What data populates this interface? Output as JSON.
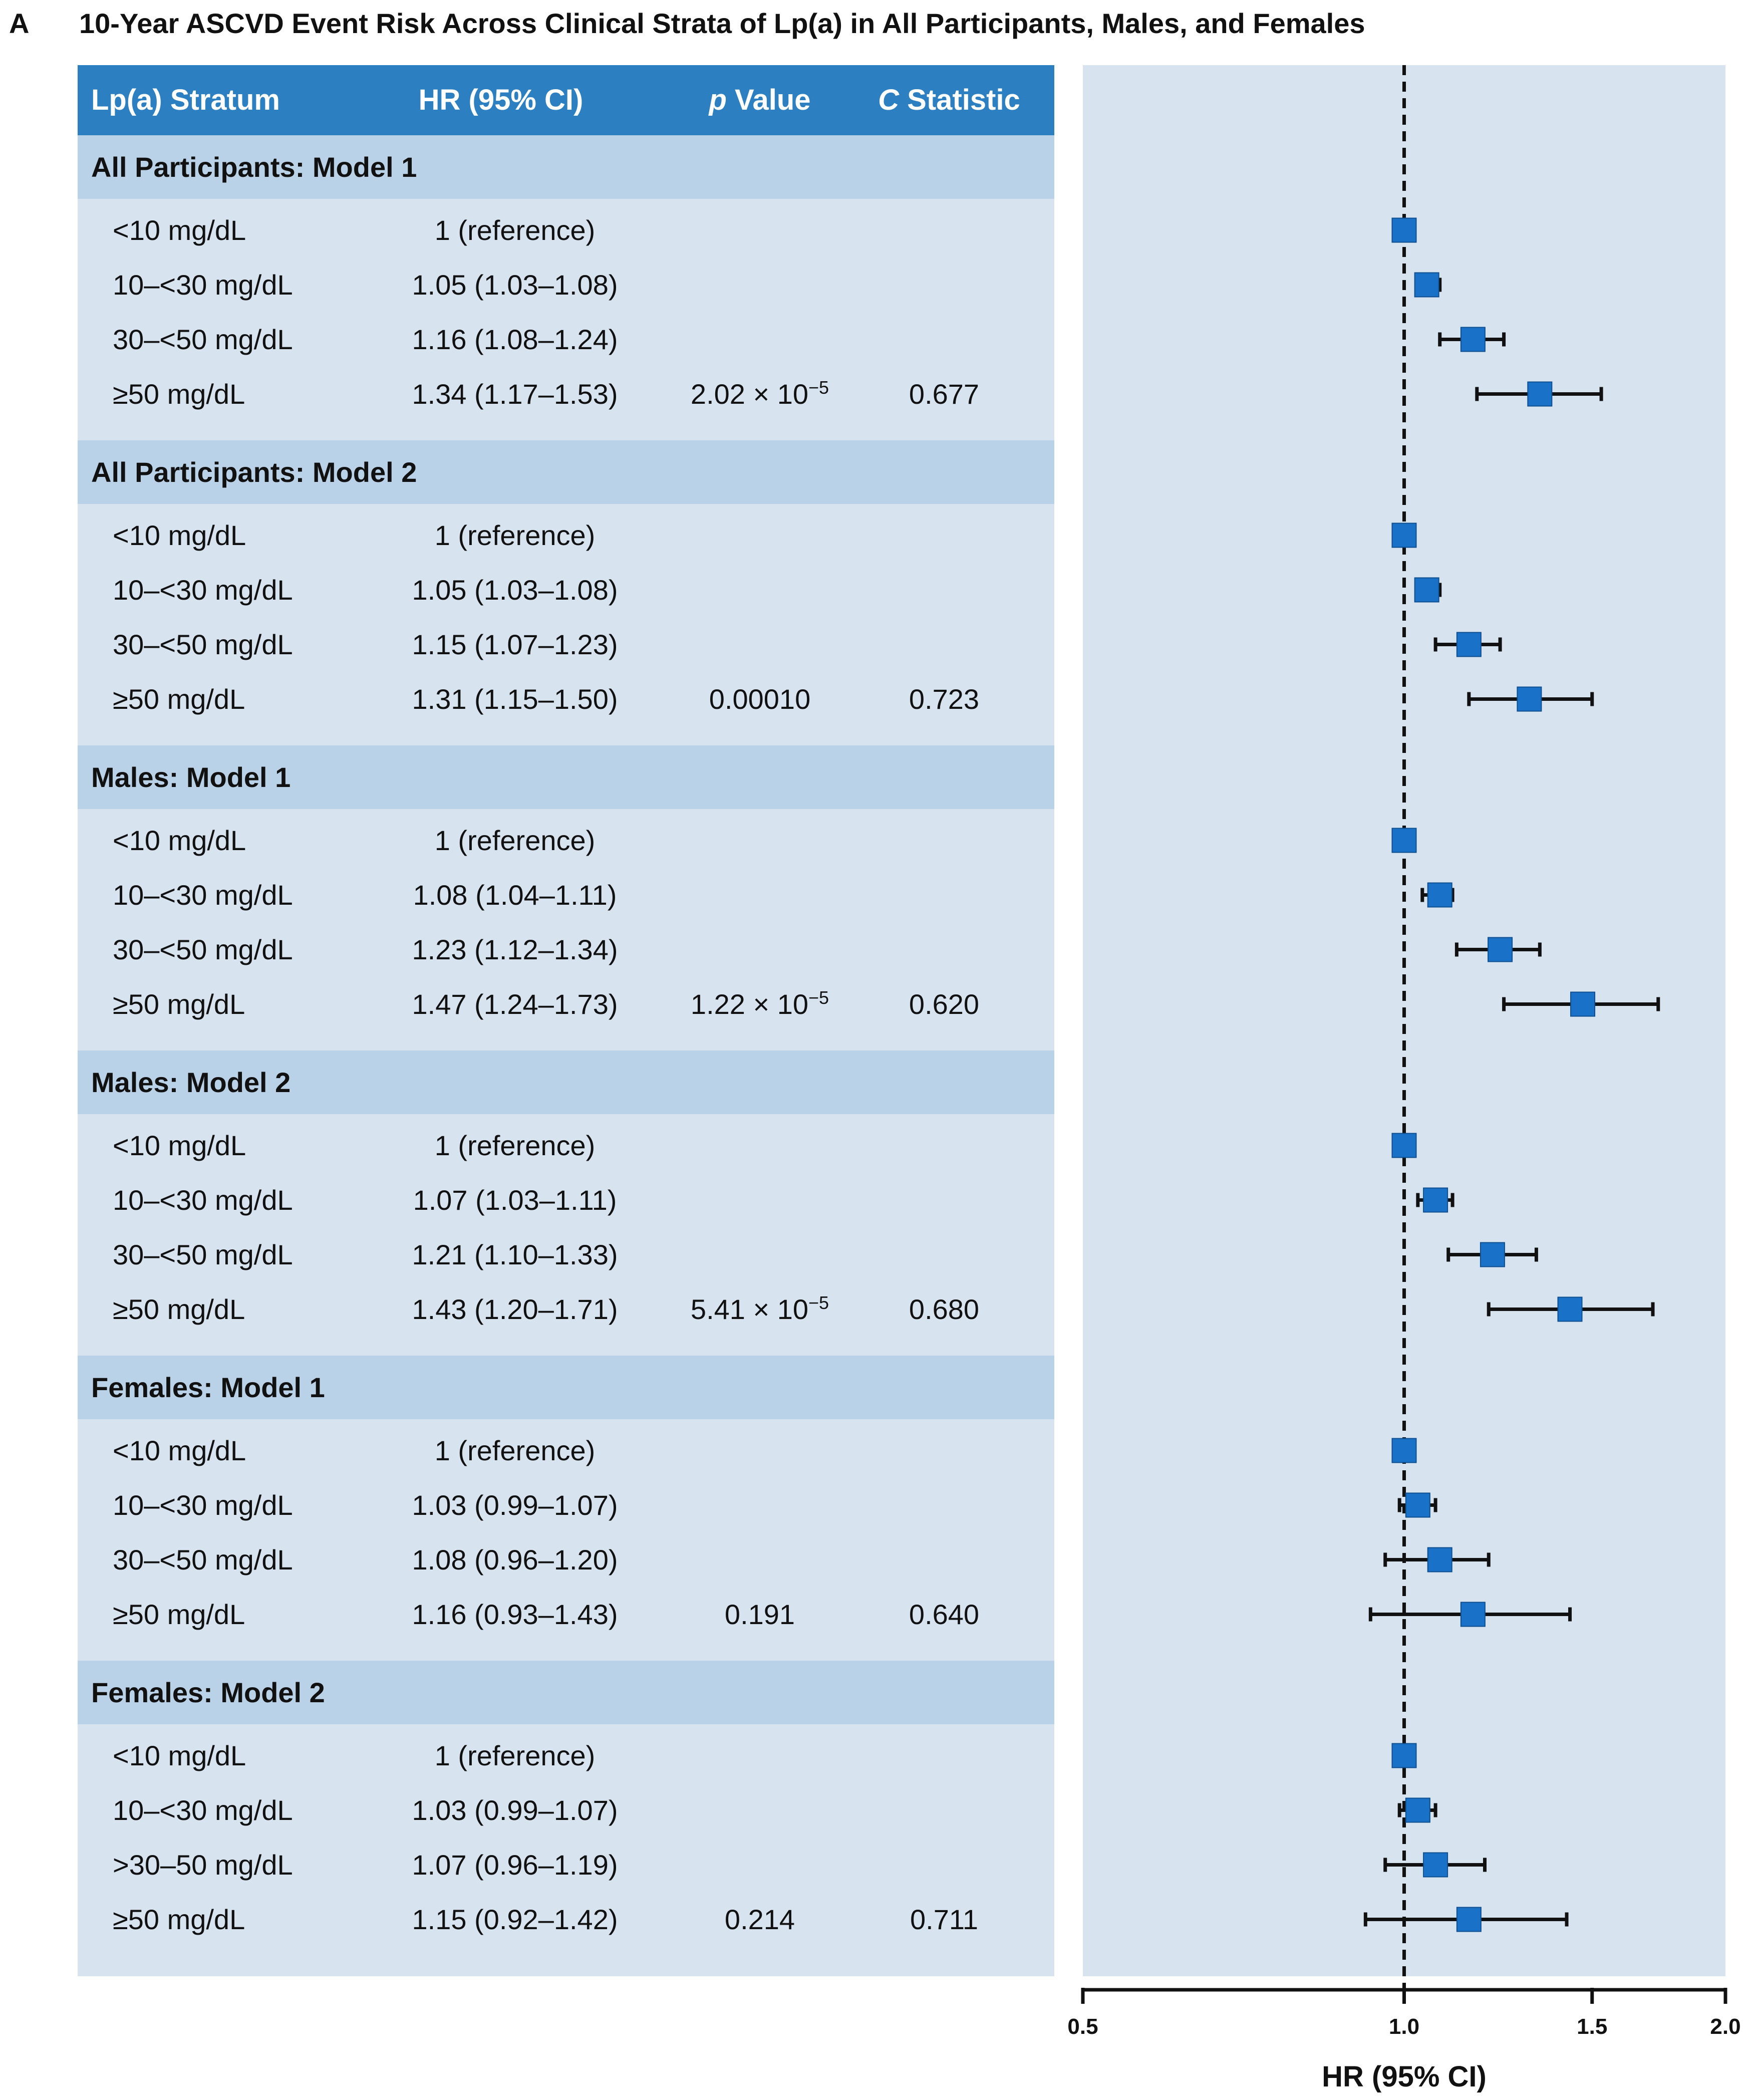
{
  "figure": {
    "panel_letter": "A",
    "title": "10-Year ASCVD Event Risk Across Clinical Strata of Lp(a) in All Participants, Males, and Females"
  },
  "table": {
    "headers": {
      "stratum": "Lp(a) Stratum",
      "hr": "HR (95% CI)",
      "p_italic": "p",
      "p_rest": " Value",
      "c_italic": "C",
      "c_rest": " Statistic"
    },
    "sections": [
      {
        "label": "All Participants: Model 1",
        "p_value": "2.02 × 10",
        "p_exp": "−5",
        "c_statistic": "0.677",
        "rows": [
          {
            "stratum": "<10 mg/dL",
            "hr_ci": "1 (reference)"
          },
          {
            "stratum": "10–<30 mg/dL",
            "hr_ci": "1.05 (1.03–1.08)"
          },
          {
            "stratum": "30–<50 mg/dL",
            "hr_ci": "1.16 (1.08–1.24)"
          },
          {
            "stratum": "≥50 mg/dL",
            "hr_ci": "1.34 (1.17–1.53)"
          }
        ]
      },
      {
        "label": "All Participants: Model 2",
        "p_value": "0.00010",
        "p_exp": "",
        "c_statistic": "0.723",
        "rows": [
          {
            "stratum": "<10 mg/dL",
            "hr_ci": "1 (reference)"
          },
          {
            "stratum": "10–<30 mg/dL",
            "hr_ci": "1.05 (1.03–1.08)"
          },
          {
            "stratum": "30–<50 mg/dL",
            "hr_ci": "1.15 (1.07–1.23)"
          },
          {
            "stratum": "≥50 mg/dL",
            "hr_ci": "1.31 (1.15–1.50)"
          }
        ]
      },
      {
        "label": "Males: Model 1",
        "p_value": "1.22 × 10",
        "p_exp": "−5",
        "c_statistic": "0.620",
        "rows": [
          {
            "stratum": "<10 mg/dL",
            "hr_ci": "1 (reference)"
          },
          {
            "stratum": "10–<30 mg/dL",
            "hr_ci": "1.08 (1.04–1.11)"
          },
          {
            "stratum": "30–<50 mg/dL",
            "hr_ci": "1.23 (1.12–1.34)"
          },
          {
            "stratum": "≥50 mg/dL",
            "hr_ci": "1.47 (1.24–1.73)"
          }
        ]
      },
      {
        "label": "Males: Model 2",
        "p_value": "5.41 × 10",
        "p_exp": "−5",
        "c_statistic": "0.680",
        "rows": [
          {
            "stratum": "<10 mg/dL",
            "hr_ci": "1 (reference)"
          },
          {
            "stratum": "10–<30 mg/dL",
            "hr_ci": "1.07 (1.03–1.11)"
          },
          {
            "stratum": "30–<50 mg/dL",
            "hr_ci": "1.21 (1.10–1.33)"
          },
          {
            "stratum": "≥50 mg/dL",
            "hr_ci": "1.43 (1.20–1.71)"
          }
        ]
      },
      {
        "label": "Females: Model 1",
        "p_value": "0.191",
        "p_exp": "",
        "c_statistic": "0.640",
        "rows": [
          {
            "stratum": "<10 mg/dL",
            "hr_ci": "1 (reference)"
          },
          {
            "stratum": "10–<30 mg/dL",
            "hr_ci": "1.03 (0.99–1.07)"
          },
          {
            "stratum": "30–<50 mg/dL",
            "hr_ci": "1.08 (0.96–1.20)"
          },
          {
            "stratum": "≥50 mg/dL",
            "hr_ci": "1.16 (0.93–1.43)"
          }
        ]
      },
      {
        "label": "Females: Model 2",
        "p_value": "0.214",
        "p_exp": "",
        "c_statistic": "0.711",
        "rows": [
          {
            "stratum": "<10 mg/dL",
            "hr_ci": "1 (reference)"
          },
          {
            "stratum": "10–<30 mg/dL",
            "hr_ci": "1.03 (0.99–1.07)"
          },
          {
            "stratum": ">30–50 mg/dL",
            "hr_ci": "1.07 (0.96–1.19)"
          },
          {
            "stratum": "≥50 mg/dL",
            "hr_ci": "1.15 (0.92–1.42)"
          }
        ]
      }
    ]
  },
  "chart_data": {
    "type": "forest",
    "xscale": "log",
    "xlim": [
      0.5,
      2.0
    ],
    "xticks": [
      0.5,
      1.0,
      1.5,
      2.0
    ],
    "xtick_labels": [
      "0.5",
      "1.0",
      "1.5",
      "2.0"
    ],
    "xlabel": "HR (95% CI)",
    "reference_line": 1.0,
    "colors": {
      "marker": "#1a72c8",
      "panel_bg": "#d7e4f0",
      "line": "#111111"
    },
    "groups": [
      {
        "name": "All Participants: Model 1",
        "points": [
          {
            "label": "<10 mg/dL",
            "hr": 1.0,
            "lo": 1.0,
            "hi": 1.0
          },
          {
            "label": "10–<30 mg/dL",
            "hr": 1.05,
            "lo": 1.03,
            "hi": 1.08
          },
          {
            "label": "30–<50 mg/dL",
            "hr": 1.16,
            "lo": 1.08,
            "hi": 1.24
          },
          {
            "label": "≥50 mg/dL",
            "hr": 1.34,
            "lo": 1.17,
            "hi": 1.53
          }
        ]
      },
      {
        "name": "All Participants: Model 2",
        "points": [
          {
            "label": "<10 mg/dL",
            "hr": 1.0,
            "lo": 1.0,
            "hi": 1.0
          },
          {
            "label": "10–<30 mg/dL",
            "hr": 1.05,
            "lo": 1.03,
            "hi": 1.08
          },
          {
            "label": "30–<50 mg/dL",
            "hr": 1.15,
            "lo": 1.07,
            "hi": 1.23
          },
          {
            "label": "≥50 mg/dL",
            "hr": 1.31,
            "lo": 1.15,
            "hi": 1.5
          }
        ]
      },
      {
        "name": "Males: Model 1",
        "points": [
          {
            "label": "<10 mg/dL",
            "hr": 1.0,
            "lo": 1.0,
            "hi": 1.0
          },
          {
            "label": "10–<30 mg/dL",
            "hr": 1.08,
            "lo": 1.04,
            "hi": 1.11
          },
          {
            "label": "30–<50 mg/dL",
            "hr": 1.23,
            "lo": 1.12,
            "hi": 1.34
          },
          {
            "label": "≥50 mg/dL",
            "hr": 1.47,
            "lo": 1.24,
            "hi": 1.73
          }
        ]
      },
      {
        "name": "Males: Model 2",
        "points": [
          {
            "label": "<10 mg/dL",
            "hr": 1.0,
            "lo": 1.0,
            "hi": 1.0
          },
          {
            "label": "10–<30 mg/dL",
            "hr": 1.07,
            "lo": 1.03,
            "hi": 1.11
          },
          {
            "label": "30–<50 mg/dL",
            "hr": 1.21,
            "lo": 1.1,
            "hi": 1.33
          },
          {
            "label": "≥50 mg/dL",
            "hr": 1.43,
            "lo": 1.2,
            "hi": 1.71
          }
        ]
      },
      {
        "name": "Females: Model 1",
        "points": [
          {
            "label": "<10 mg/dL",
            "hr": 1.0,
            "lo": 1.0,
            "hi": 1.0
          },
          {
            "label": "10–<30 mg/dL",
            "hr": 1.03,
            "lo": 0.99,
            "hi": 1.07
          },
          {
            "label": "30–<50 mg/dL",
            "hr": 1.08,
            "lo": 0.96,
            "hi": 1.2
          },
          {
            "label": "≥50 mg/dL",
            "hr": 1.16,
            "lo": 0.93,
            "hi": 1.43
          }
        ]
      },
      {
        "name": "Females: Model 2",
        "points": [
          {
            "label": "<10 mg/dL",
            "hr": 1.0,
            "lo": 1.0,
            "hi": 1.0
          },
          {
            "label": "10–<30 mg/dL",
            "hr": 1.03,
            "lo": 0.99,
            "hi": 1.07
          },
          {
            "label": ">30–50 mg/dL",
            "hr": 1.07,
            "lo": 0.96,
            "hi": 1.19
          },
          {
            "label": "≥50 mg/dL",
            "hr": 1.15,
            "lo": 0.92,
            "hi": 1.42
          }
        ]
      }
    ]
  }
}
